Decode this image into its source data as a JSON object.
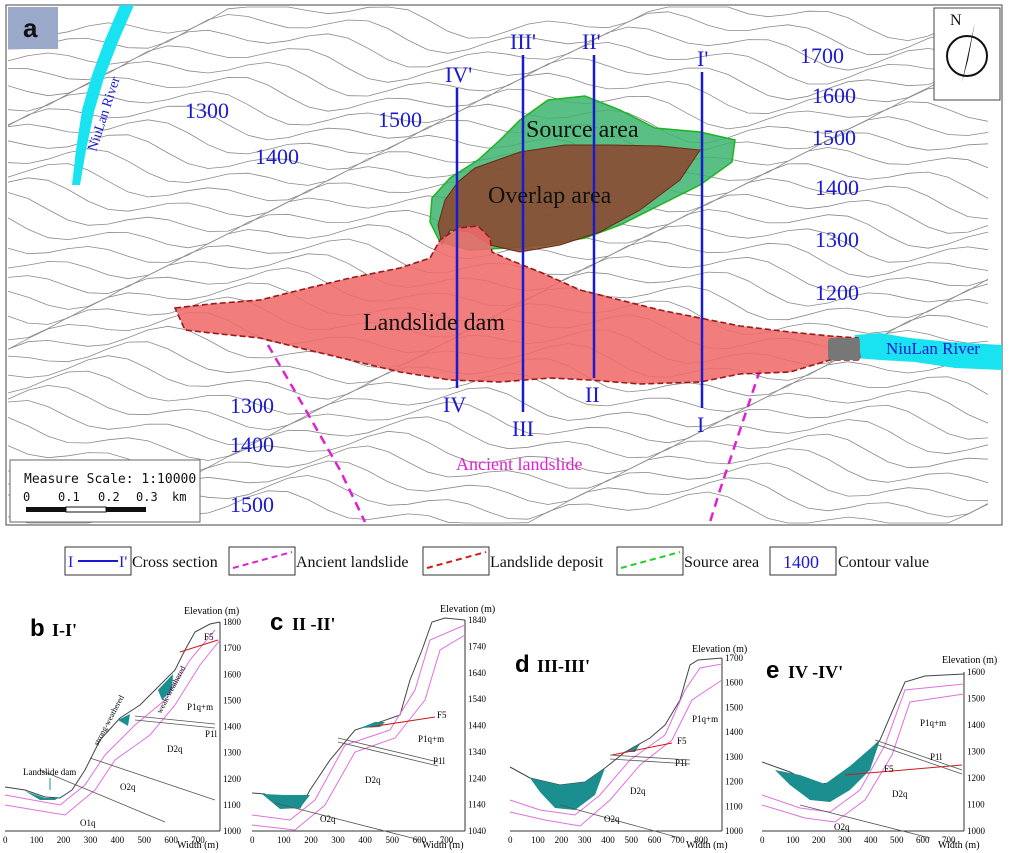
{
  "panel_a": {
    "letter": "a",
    "north_label": "N",
    "river_labels": [
      "NiuLan River",
      "NiuLan River"
    ],
    "contours_left": [
      "1300",
      "1400",
      "1500",
      "1300",
      "1400",
      "1500"
    ],
    "contours_right": [
      "1700",
      "1600",
      "1500",
      "1400",
      "1300",
      "1200"
    ],
    "areas": {
      "source": "Source area",
      "overlap": "Overlap area",
      "dam": "Landslide dam"
    },
    "ancient_label": "Ancient landslide",
    "sections": [
      {
        "top": "IV'",
        "bottom": "IV"
      },
      {
        "top": "III'",
        "bottom": "III"
      },
      {
        "top": "II'",
        "bottom": "II"
      },
      {
        "top": "I'",
        "bottom": "I"
      }
    ],
    "scale": {
      "title": "Measure Scale: 1:10000",
      "ticks": [
        "0",
        "0.1",
        "0.2",
        "0.3"
      ],
      "unit": "km"
    },
    "colors": {
      "river": "#19e3f0",
      "contour_label": "#1a1ad0",
      "section_line": "#1a1ad0",
      "source_fill": "#3cb46e",
      "overlap_fill": "#8b4a32",
      "dam_fill": "#ef6b6b",
      "ancient_line": "#e020d0"
    }
  },
  "legend": {
    "cross_section": {
      "left": "I",
      "right": "I'",
      "label": "Cross section"
    },
    "ancient_label": "Ancient landslide",
    "deposit_label": "Landslide deposit",
    "source_label": "Source area",
    "contour_value": "1400",
    "contour_label": "Contour value"
  },
  "profiles": [
    {
      "letter": "b",
      "title": "I-I'",
      "elev_title": "Elevation (m)",
      "y_ticks": [
        "1800",
        "1700",
        "1600",
        "1500",
        "1400",
        "1300",
        "1200",
        "1100",
        "1000"
      ],
      "x_ticks": [
        "0",
        "100",
        "200",
        "300",
        "400",
        "500",
        "600",
        "700"
      ],
      "x_title": "Width (m)",
      "labels": {
        "f5": "F5",
        "p1qm": "P1q+m",
        "p1l": "P1l",
        "d2q": "D2q",
        "o2q": "O2q",
        "o1q": "O1q",
        "strong": "strong-weathered",
        "weak": "weak-weathered",
        "dam": "Landslide dam"
      }
    },
    {
      "letter": "c",
      "title": "II -II'",
      "elev_title": "Elevation (m)",
      "y_ticks": [
        "1840",
        "1740",
        "1640",
        "1540",
        "1440",
        "1340",
        "1240",
        "1140",
        "1040"
      ],
      "x_ticks": [
        "0",
        "100",
        "200",
        "300",
        "400",
        "500",
        "600",
        "700"
      ],
      "x_title": "Width (m)",
      "labels": {
        "f5": "F5",
        "p1qm": "P1q+m",
        "p1l": "P1l",
        "d2q": "D2q",
        "o2q": "O2q"
      }
    },
    {
      "letter": "d",
      "title": "III-III'",
      "elev_title": "Elevation (m)",
      "y_ticks": [
        "1700",
        "1600",
        "1500",
        "1400",
        "1300",
        "1200",
        "1100",
        "1000"
      ],
      "x_ticks": [
        "0",
        "100",
        "200",
        "300",
        "400",
        "500",
        "600",
        "700",
        "800"
      ],
      "x_title": "Width (m)",
      "labels": {
        "f5": "F5",
        "p1qm": "P1q+m",
        "p1l": "P1l",
        "d2q": "D2q",
        "o2q": "O2q"
      }
    },
    {
      "letter": "e",
      "title": "IV -IV'",
      "elev_title": "Elevation (m)",
      "y_ticks": [
        "1600",
        "1500",
        "1400",
        "1300",
        "1200",
        "1100",
        "1000"
      ],
      "x_ticks": [
        "0",
        "100",
        "200",
        "300",
        "400",
        "500",
        "600",
        "700"
      ],
      "x_title": "Width (m)",
      "labels": {
        "f5": "F5",
        "p1qm": "P1q+m",
        "p1l": "P1l",
        "d2q": "D2q",
        "o2q": "O2q"
      }
    }
  ]
}
